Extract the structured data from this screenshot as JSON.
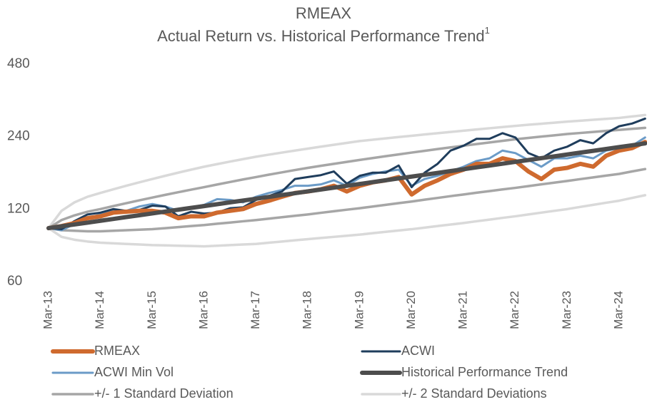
{
  "chart_data": {
    "type": "line",
    "title": "RMEAX",
    "subtitle": "Actual Return vs. Historical Performance Trend",
    "subtitle_note": "1",
    "ylog": true,
    "ylim": [
      60,
      480
    ],
    "yticks": [
      60,
      120,
      240,
      480
    ],
    "grid": false,
    "categories": [
      "Mar-13",
      null,
      null,
      null,
      "Mar-14",
      null,
      null,
      null,
      "Mar-15",
      null,
      null,
      null,
      "Mar-16",
      null,
      null,
      null,
      "Mar-17",
      null,
      null,
      null,
      "Mar-18",
      null,
      null,
      null,
      "Mar-19",
      null,
      null,
      null,
      "Mar-20",
      null,
      null,
      null,
      "Mar-21",
      null,
      null,
      null,
      "Mar-22",
      null,
      null,
      null,
      "Mar-23",
      null,
      null,
      null,
      "Mar-24",
      null,
      null
    ],
    "series": [
      {
        "name": "RMEAX",
        "color": "#cf6a2e",
        "values": [
          100,
          102,
          105,
          110,
          112,
          116,
          117,
          118,
          118,
          116,
          110,
          112,
          112,
          116,
          118,
          120,
          126,
          130,
          135,
          140,
          142,
          145,
          150,
          142,
          150,
          155,
          158,
          163,
          138,
          150,
          158,
          168,
          175,
          185,
          185,
          195,
          190,
          172,
          160,
          175,
          178,
          185,
          180,
          200,
          210,
          215,
          228
        ]
      },
      {
        "name": "ACWI",
        "color": "#1f3d5c",
        "values": [
          100,
          99,
          107,
          114,
          116,
          120,
          118,
          119,
          124,
          123,
          112,
          117,
          115,
          116,
          121,
          122,
          131,
          136,
          142,
          160,
          163,
          166,
          172,
          153,
          165,
          170,
          170,
          182,
          148,
          170,
          185,
          210,
          220,
          235,
          235,
          248,
          238,
          205,
          195,
          210,
          218,
          232,
          225,
          248,
          265,
          272,
          285
        ]
      },
      {
        "name": "ACWI Min Vol",
        "color": "#6b9bc7",
        "values": [
          100,
          98,
          104,
          110,
          114,
          118,
          118,
          123,
          126,
          123,
          118,
          122,
          125,
          132,
          131,
          128,
          135,
          140,
          144,
          150,
          150,
          152,
          158,
          150,
          162,
          168,
          172,
          175,
          150,
          160,
          165,
          172,
          180,
          190,
          195,
          210,
          205,
          192,
          180,
          195,
          195,
          200,
          195,
          210,
          215,
          220,
          238
        ]
      },
      {
        "name": "Historical Performance Trend",
        "color": "#4d4d4d",
        "values": [
          100,
          101.8,
          103.6,
          105.4,
          107.3,
          109.2,
          111.2,
          113.1,
          115.1,
          117.2,
          119.3,
          121.4,
          123.5,
          125.7,
          128.0,
          130.2,
          132.5,
          134.9,
          137.3,
          139.7,
          142.2,
          144.7,
          147.3,
          149.9,
          152.6,
          155.3,
          158.1,
          160.9,
          163.7,
          166.6,
          169.6,
          172.6,
          175.7,
          178.8,
          182.0,
          185.2,
          188.5,
          191.9,
          195.3,
          198.7,
          202.3,
          205.9,
          209.5,
          213.3,
          217.1,
          220.9,
          224.9
        ]
      },
      {
        "name": "+/- 1 Standard Deviation",
        "color": "#a6a6a6",
        "upper": [
          100,
          108,
          113,
          117,
          120,
          123.5,
          127,
          130.5,
          134,
          137.5,
          141,
          144.5,
          148,
          151.8,
          155.5,
          159.3,
          163,
          166.8,
          170.5,
          174.3,
          178,
          181.5,
          185,
          188.5,
          192,
          195.5,
          199,
          202.5,
          206,
          209.5,
          213,
          216.5,
          220,
          223.5,
          227,
          230.5,
          234,
          237,
          240,
          243,
          246,
          248.5,
          251,
          253.5,
          256,
          258.5,
          261
        ],
        "lower": [
          100,
          98,
          97.5,
          97,
          97,
          97.5,
          98,
          98.5,
          99,
          100,
          101,
          102,
          103,
          104.3,
          105.5,
          106.8,
          108,
          109.5,
          111,
          112.5,
          114,
          115.8,
          117.5,
          119.3,
          121,
          123,
          125,
          127,
          129,
          131.3,
          133.5,
          135.8,
          138,
          140.3,
          142.5,
          144.8,
          147,
          149.5,
          152,
          154.5,
          157,
          159.8,
          162.5,
          165.3,
          168,
          172,
          176
        ]
      },
      {
        "name": "+/- 2 Standard Deviations",
        "color": "#d9d9d9",
        "upper": [
          100,
          118,
          128,
          135,
          140,
          145,
          150,
          155,
          160,
          165,
          170,
          175,
          180,
          184.5,
          189,
          193.5,
          198,
          202,
          206,
          210,
          214,
          218,
          222,
          226,
          230,
          233,
          236,
          239,
          242,
          245,
          248,
          251,
          254,
          257,
          260,
          263,
          266,
          268.8,
          271.5,
          274.3,
          277,
          279.5,
          282,
          284.5,
          287,
          291,
          295
        ],
        "lower": [
          100,
          92,
          89.5,
          88,
          87,
          86.5,
          86,
          85.5,
          85,
          84.8,
          84.5,
          84.3,
          84,
          84.5,
          85,
          85.5,
          86,
          87,
          88,
          89,
          90,
          91,
          92,
          93,
          94,
          95.3,
          96.5,
          97.8,
          99,
          100.5,
          102,
          103.5,
          105,
          106.8,
          108.5,
          110.3,
          112,
          114,
          116,
          118,
          120,
          122.5,
          125,
          127.5,
          130,
          133.5,
          137
        ]
      }
    ]
  }
}
